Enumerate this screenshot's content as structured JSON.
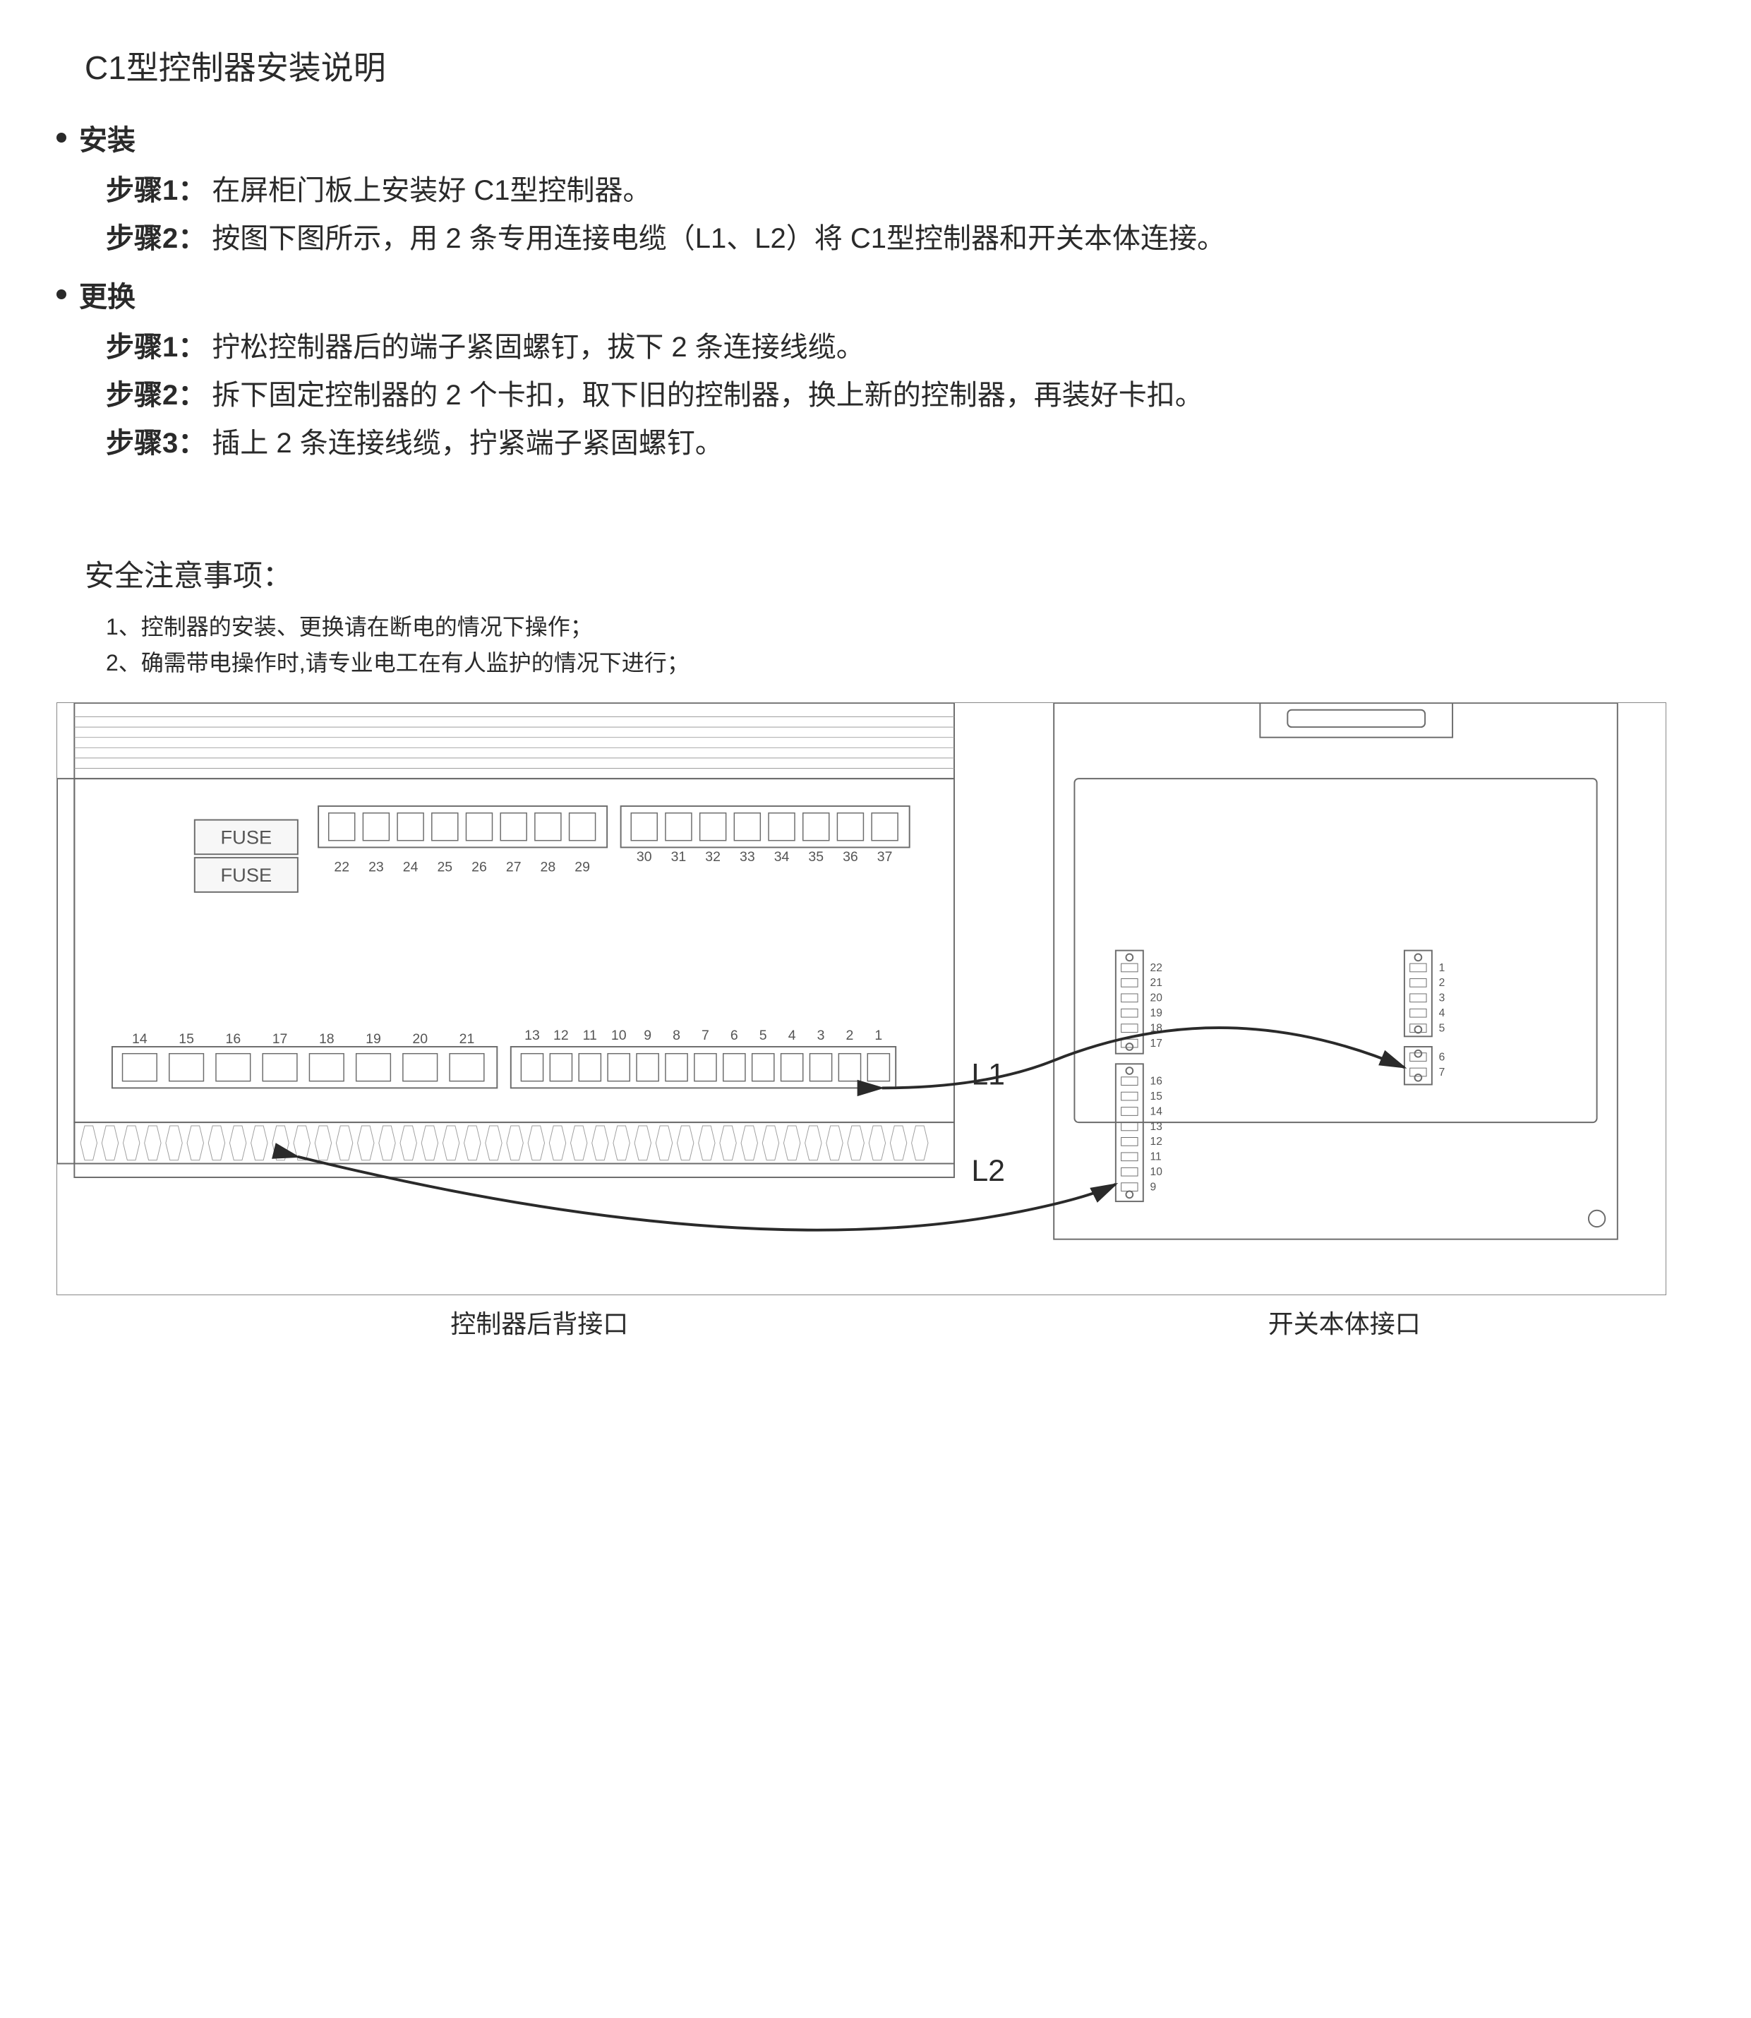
{
  "title": "C1型控制器安装说明",
  "install": {
    "header": "安装",
    "steps": [
      {
        "label": "步骤1：",
        "text": "在屏柜门板上安装好 C1型控制器。"
      },
      {
        "label": "步骤2：",
        "text": "按图下图所示，用 2 条专用连接电缆（L1、L2）将 C1型控制器和开关本体连接。"
      }
    ]
  },
  "replace": {
    "header": "更换",
    "steps": [
      {
        "label": "步骤1：",
        "text": "拧松控制器后的端子紧固螺钉，拔下 2 条连接线缆。"
      },
      {
        "label": "步骤2：",
        "text": "拆下固定控制器的 2 个卡扣，取下旧的控制器，换上新的控制器，再装好卡扣。"
      },
      {
        "label": "步骤3：",
        "text": "插上 2 条连接线缆，拧紧端子紧固螺钉。"
      }
    ]
  },
  "safety": {
    "title": "安全注意事项：",
    "notes": [
      "1、控制器的安装、更换请在断电的情况下操作；",
      "2、确需带电操作时,请专业电工在有人监护的情况下进行；"
    ]
  },
  "diagram": {
    "left_caption": "控制器后背接口",
    "right_caption": "开关本体接口",
    "cable_labels": {
      "L1": "L1",
      "L2": "L2"
    },
    "fuse_label": "FUSE",
    "terminal_rows": {
      "upper_left": [
        "22",
        "23",
        "24",
        "25",
        "26",
        "27",
        "28",
        "29"
      ],
      "upper_right": [
        "30",
        "31",
        "32",
        "33",
        "34",
        "35",
        "36",
        "37"
      ],
      "lower_left": [
        "14",
        "15",
        "16",
        "17",
        "18",
        "19",
        "20",
        "21"
      ],
      "lower_right": [
        "13",
        "12",
        "11",
        "10",
        "9",
        "8",
        "7",
        "6",
        "5",
        "4",
        "3",
        "2",
        "1"
      ]
    },
    "switch_body_left_col_top": [
      "22",
      "21",
      "20",
      "19",
      "18",
      "17"
    ],
    "switch_body_left_col_bot": [
      "16",
      "15",
      "14",
      "13",
      "12",
      "11",
      "10",
      "9"
    ],
    "switch_body_right_col_top": [
      "1",
      "2",
      "3",
      "4",
      "5"
    ],
    "switch_body_right_col_bot": [
      "6",
      "7"
    ],
    "colors": {
      "outline": "#6b6b6b",
      "light_outline": "#9e9e9e",
      "fuse_bg": "#f0f0f0",
      "text": "#555555"
    }
  }
}
